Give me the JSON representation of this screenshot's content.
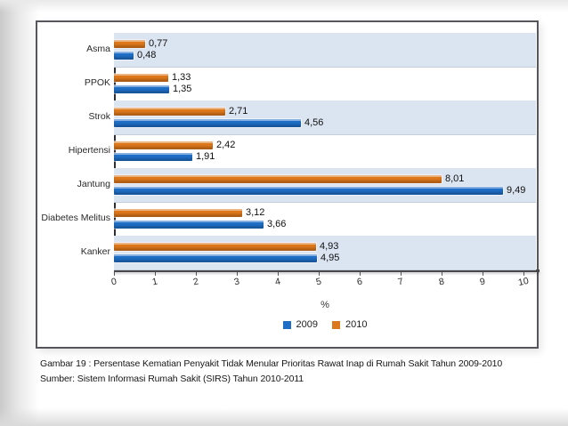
{
  "slide": {
    "caption_line1": "Gambar 19 : Persentase Kematian Penyakit Tidak Menular Prioritas Rawat Inap di Rumah Sakit Tahun 2009-2010",
    "caption_line2": "Sumber: Sistem Informasi Rumah Sakit (SIRS) Tahun 2010-2011"
  },
  "colors": {
    "series_2009_blue": "#1f6ec6",
    "series_2010_orange": "#dd771b",
    "row_band_blue": "#dbe5f1",
    "frame_border": "#56565c",
    "accent_dark_olive": "#665e45",
    "accent_khaki": "#a9a172"
  },
  "chart_data": {
    "type": "bar",
    "orientation": "horizontal",
    "title": "",
    "xlabel": "%",
    "xlim": [
      0,
      10
    ],
    "x_ticks": [
      "0",
      "1",
      "2",
      "3",
      "4",
      "5",
      "6",
      "7",
      "8",
      "9",
      "10"
    ],
    "grid": false,
    "legend_position": "bottom",
    "categories": [
      "Asma",
      "PPOK",
      "Strok",
      "Hipertensi",
      "Jantung",
      "Diabetes Melitus",
      "Kanker"
    ],
    "series": [
      {
        "name": "2009",
        "color": "#1f6ec6",
        "values": [
          0.48,
          1.35,
          4.56,
          1.91,
          9.49,
          3.66,
          4.95
        ],
        "labels": [
          "0,48",
          "1,35",
          "4,56",
          "1,91",
          "9,49",
          "3,66",
          "4,95"
        ]
      },
      {
        "name": "2010",
        "color": "#dd771b",
        "values": [
          0.77,
          1.33,
          2.71,
          2.42,
          8.01,
          3.12,
          4.93
        ],
        "labels": [
          "0,77",
          "1,33",
          "2,71",
          "2,42",
          "8,01",
          "3,12",
          "4,93"
        ]
      }
    ],
    "bar_order_top_to_bottom": [
      "2010",
      "2009"
    ]
  }
}
